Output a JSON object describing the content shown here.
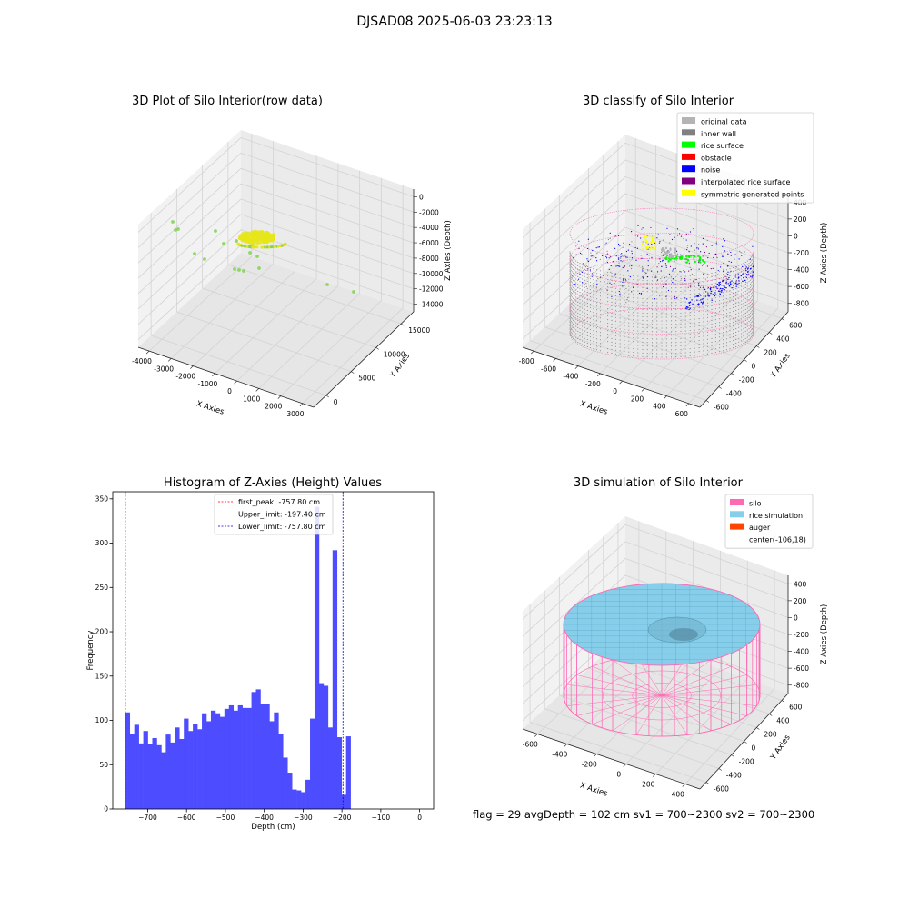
{
  "suptitle": "DJSAD08 2025-06-03 23:23:13",
  "footer": "flag = 29  avgDepth = 102 cm  sv1 = 700~2300  sv2 = 700~2300",
  "chart_data": [
    {
      "type": "scatter",
      "title": "3D Plot of Silo Interior(row data)",
      "xlabel": "X Axies",
      "ylabel": "Y Axies",
      "zlabel": "Z Axies (Depth)",
      "x_ticks": [
        "-4000",
        "-3000",
        "-2000",
        "-1000",
        "0",
        "1000",
        "2000",
        "3000"
      ],
      "y_ticks": [
        "0",
        "5000",
        "10000",
        "15000"
      ],
      "z_ticks": [
        "0",
        "-2000",
        "-4000",
        "-6000",
        "-8000",
        "-10000",
        "-12000",
        "-14000"
      ],
      "colors": {
        "sparse": "#7fd24f",
        "dense": "#e6e619"
      }
    },
    {
      "type": "scatter",
      "title": "3D classify of Silo Interior",
      "xlabel": "X Axies",
      "ylabel": "Y Axies",
      "zlabel": "Z Axies (Depth)",
      "x_ticks": [
        "-800",
        "-600",
        "-400",
        "-200",
        "0",
        "200",
        "400",
        "600"
      ],
      "y_ticks": [
        "-600",
        "-400",
        "-200",
        "0",
        "200",
        "400",
        "600"
      ],
      "z_ticks": [
        "400",
        "200",
        "0",
        "-200",
        "-400",
        "-600",
        "-800"
      ],
      "legend_position": "top-right",
      "legend": [
        {
          "label": "original data",
          "color": "#b4b4b4"
        },
        {
          "label": "inner wall",
          "color": "#808080"
        },
        {
          "label": "rice surface",
          "color": "#00ff00"
        },
        {
          "label": "obstacle",
          "color": "#ff0000"
        },
        {
          "label": "noise",
          "color": "#0000ff"
        },
        {
          "label": "interpolated rice surface",
          "color": "#800080"
        },
        {
          "label": "symmetric generated points",
          "color": "#ffff00"
        }
      ]
    },
    {
      "type": "bar",
      "title": "Histogram of Z-Axies (Height) Values",
      "xlabel": "Depth (cm)",
      "ylabel": "Frequency",
      "xlim": [
        -790,
        36
      ],
      "ylim": [
        0,
        358
      ],
      "bin_start": -757.8,
      "bin_width": 11.6,
      "values": [
        109,
        85,
        95,
        74,
        88,
        73,
        80,
        72,
        64,
        84,
        75,
        92,
        79,
        102,
        88,
        96,
        90,
        108,
        99,
        111,
        108,
        104,
        113,
        117,
        111,
        117,
        114,
        114,
        132,
        135,
        119,
        119,
        99,
        109,
        85,
        58,
        41,
        22,
        21,
        19,
        33,
        102,
        341,
        142,
        139,
        92,
        292,
        81,
        16,
        82
      ],
      "x_ticks": [
        -700,
        -600,
        -500,
        -400,
        -300,
        -200,
        -100,
        0
      ],
      "x_tick_labels": [
        "−700",
        "−600",
        "−500",
        "−400",
        "−300",
        "−200",
        "−100",
        "0"
      ],
      "y_ticks": [
        0,
        50,
        100,
        150,
        200,
        250,
        300,
        350
      ],
      "bar_color": "#4d4dff",
      "vlines": [
        {
          "label": "first_peak: -757.80 cm",
          "x": -757.8,
          "color": "#ff0000"
        },
        {
          "label": "Upper_limit: -197.40 cm",
          "x": -197.4,
          "color": "#0000cc"
        },
        {
          "label": "Lower_limit: -757.80 cm",
          "x": -757.8,
          "color": "#0000cc"
        }
      ],
      "legend_position": "upper-center"
    },
    {
      "type": "surface",
      "title": "3D simulation of Silo Interior",
      "xlabel": "X Axies",
      "ylabel": "Y Axies",
      "zlabel": "Z Axies (Depth)",
      "x_ticks": [
        "-600",
        "-400",
        "-200",
        "0",
        "200",
        "400"
      ],
      "y_ticks": [
        "-600",
        "-400",
        "-200",
        "0",
        "200",
        "400",
        "600"
      ],
      "z_ticks": [
        "400",
        "200",
        "0",
        "-200",
        "-400",
        "-600",
        "-800"
      ],
      "legend_position": "top-right",
      "legend": [
        {
          "label": "silo",
          "color": "#ff69b4"
        },
        {
          "label": "rice simulation",
          "color": "#87ceeb"
        },
        {
          "label": "auger",
          "color": "#ff4500"
        },
        {
          "label": "center(-106,18)",
          "color": "none"
        }
      ]
    }
  ]
}
